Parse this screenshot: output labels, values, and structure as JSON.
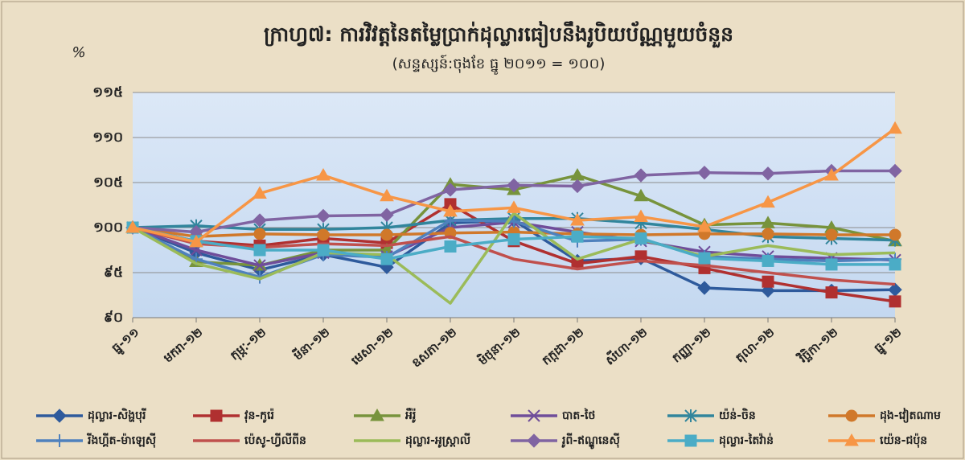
{
  "chart_data": {
    "type": "line",
    "title": "ក្រាហ្វ៧: ការវិវត្តនៃតម្លៃប្រាក់ដុល្លារធៀបនឹងរូបិយប័ណ្ណមួយចំនួន",
    "subtitle": "(សន្ទស្សន៍:ចុងខែ ធ្នូ ២០១១ = ១០០)",
    "y_label": "%",
    "categories": [
      "ធ្នូ-១១",
      "មករា-១២",
      "កុម្ភៈ-១២",
      "មីនា-១២",
      "មេសា-១២",
      "ឧសភា-១២",
      "មិថុនា-១២",
      "កក្កដា-១២",
      "សីហា-១២",
      "កញ្ញា-១២",
      "តុលា-១២",
      "វិច្ឆិកា-១២",
      "ធ្នូ-១២"
    ],
    "ylim": [
      90,
      115
    ],
    "yticks": [
      {
        "value": 90,
        "label": "៩០"
      },
      {
        "value": 95,
        "label": "៩៥"
      },
      {
        "value": 100,
        "label": "១០០"
      },
      {
        "value": 105,
        "label": "១០៥"
      },
      {
        "value": 110,
        "label": "១១០"
      },
      {
        "value": 115,
        "label": "១១៥"
      }
    ],
    "grid": true,
    "legend": "bottom",
    "series": [
      {
        "name": "ដុល្លារ-សិង្ហបុរី",
        "color": "#2e5a9c",
        "marker": "diamond",
        "values": [
          100,
          97.2,
          95.3,
          97,
          95.6,
          100.5,
          100.8,
          96.3,
          96.6,
          93.3,
          93,
          93,
          93.1
        ]
      },
      {
        "name": "វុន-កូរ៉េ",
        "color": "#b03030",
        "marker": "square",
        "values": [
          100,
          98.5,
          98,
          98.8,
          98.3,
          102.6,
          98.5,
          96,
          96.8,
          95.5,
          94,
          92.8,
          91.8
        ]
      },
      {
        "name": "អឺរ៉ូ",
        "color": "#77933c",
        "marker": "triangle",
        "values": [
          100,
          96.2,
          95.8,
          97.5,
          97.5,
          104.8,
          104.2,
          105.8,
          103.5,
          100.3,
          100.5,
          100,
          98.5
        ]
      },
      {
        "name": "បាត-ថៃ",
        "color": "#6f4d9a",
        "marker": "x",
        "values": [
          100,
          97.5,
          95.8,
          97.2,
          96.8,
          100,
          100.6,
          99.5,
          98.5,
          97.3,
          96.8,
          96.6,
          96.4
        ]
      },
      {
        "name": "យ៉ន់-ចិន",
        "color": "#31859c",
        "marker": "asterisk",
        "values": [
          100,
          100.2,
          99.8,
          99.8,
          100,
          100.8,
          101,
          101,
          100.5,
          99.8,
          99,
          98.8,
          98.6
        ]
      },
      {
        "name": "ដុង-វៀតណាម",
        "color": "#d0782a",
        "marker": "circle",
        "values": [
          100,
          99,
          99.3,
          99.2,
          99.2,
          99.4,
          99.5,
          99.3,
          99.2,
          99.3,
          99.3,
          99.2,
          99.2
        ]
      },
      {
        "name": "រីងហ្គីត-ម៉ាឡេស៊ី",
        "color": "#4f81bd",
        "marker": "plus",
        "values": [
          100,
          96.5,
          94.5,
          97,
          96.7,
          100.8,
          100.7,
          98.5,
          98.7,
          96.8,
          96.5,
          96.3,
          96.5
        ]
      },
      {
        "name": "ប៉េសូ-ហ្វីលីពីន",
        "color": "#c0504d",
        "marker": "none",
        "values": [
          100,
          98.2,
          97.8,
          98.2,
          98,
          99,
          96.5,
          95.4,
          96.3,
          95.8,
          95,
          94.2,
          93.7
        ]
      },
      {
        "name": "ដុល្លារ-អូស្ត្រាលី",
        "color": "#9bbb59",
        "marker": "none",
        "values": [
          100,
          96,
          94.3,
          97.2,
          97,
          91.6,
          101.6,
          96.5,
          98.7,
          96.8,
          98,
          97,
          97.2
        ]
      },
      {
        "name": "រូពី-ឥណ្ឌូនេស៊ី",
        "color": "#8064a2",
        "marker": "diamond",
        "values": [
          100,
          99.5,
          100.8,
          101.3,
          101.4,
          104.2,
          104.7,
          104.6,
          105.8,
          106.1,
          106,
          106.3,
          106.3
        ]
      },
      {
        "name": "ដុល្លារ-តៃវ៉ាន់",
        "color": "#4bacc6",
        "marker": "square",
        "values": [
          100,
          98.5,
          97.5,
          97.5,
          96.5,
          97.9,
          98.7,
          99,
          98.8,
          96.6,
          96.3,
          95.9,
          95.9
        ]
      },
      {
        "name": "យ៉េន-ជប៉ុន",
        "color": "#f79646",
        "marker": "triangle",
        "values": [
          100,
          98.4,
          103.8,
          105.8,
          103.5,
          101.8,
          102.2,
          100.8,
          101.2,
          100.1,
          102.8,
          105.8,
          111
        ]
      }
    ]
  }
}
